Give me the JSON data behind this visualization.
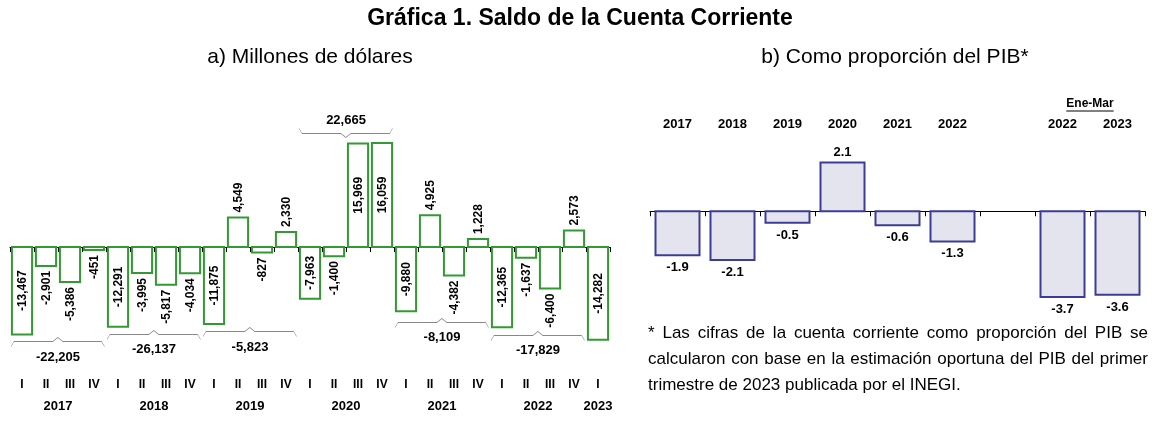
{
  "chart_data": [
    {
      "type": "bar",
      "title": "Gráfica 1. Saldo de la Cuenta Corriente",
      "subtitle": "a) Millones de dólares",
      "categories": [
        "I",
        "II",
        "III",
        "IV",
        "I",
        "II",
        "III",
        "IV",
        "I",
        "II",
        "III",
        "IV",
        "I",
        "II",
        "III",
        "IV",
        "I",
        "II",
        "III",
        "IV",
        "I",
        "II",
        "III",
        "IV",
        "I"
      ],
      "values": [
        -13467,
        -2901,
        -5386,
        -451,
        -12291,
        -3995,
        -5817,
        -4034,
        -11875,
        4549,
        -827,
        2330,
        -7963,
        -1400,
        15969,
        16059,
        -9880,
        4925,
        -4382,
        1228,
        -12365,
        -1637,
        -6400,
        2573,
        -14282
      ],
      "value_labels": [
        "-13,467",
        "-2,901",
        "-5,386",
        "-451",
        "-12,291",
        "-3,995",
        "-5,817",
        "-4,034",
        "-11,875",
        "4,549",
        "-827",
        "2,330",
        "-7,963",
        "-1,400",
        "15,969",
        "16,059",
        "-9,880",
        "4,925",
        "-4,382",
        "1,228",
        "-12,365",
        "-1,637",
        "-6,400",
        "2,573",
        "-14,282"
      ],
      "color": "#339933",
      "annotations": [
        "-22,205",
        "-26,137",
        "-5,823",
        "22,665",
        "-8,109",
        "-17,829",
        "2017",
        "2018",
        "2019",
        "2020",
        "2021",
        "2022",
        "2023"
      ]
    },
    {
      "type": "bar",
      "title": "b) Como proporción del PIB*",
      "categories": [
        "2017",
        "2018",
        "2019",
        "2020",
        "2021",
        "2022",
        null,
        "2022",
        "2023"
      ],
      "values": [
        -1.9,
        -2.1,
        -0.5,
        2.1,
        -0.6,
        -1.3,
        null,
        -3.7,
        -3.6
      ],
      "color": "#3c3c96",
      "data_labels": true,
      "annotations": [
        "Ene-Mar",
        "* Las cifras de la cuenta corriente como proporción del PIB se calcularon con base en la estimación oportuna del PIB del primer trimestre de 2023 publicada por el INEGI."
      ]
    }
  ]
}
